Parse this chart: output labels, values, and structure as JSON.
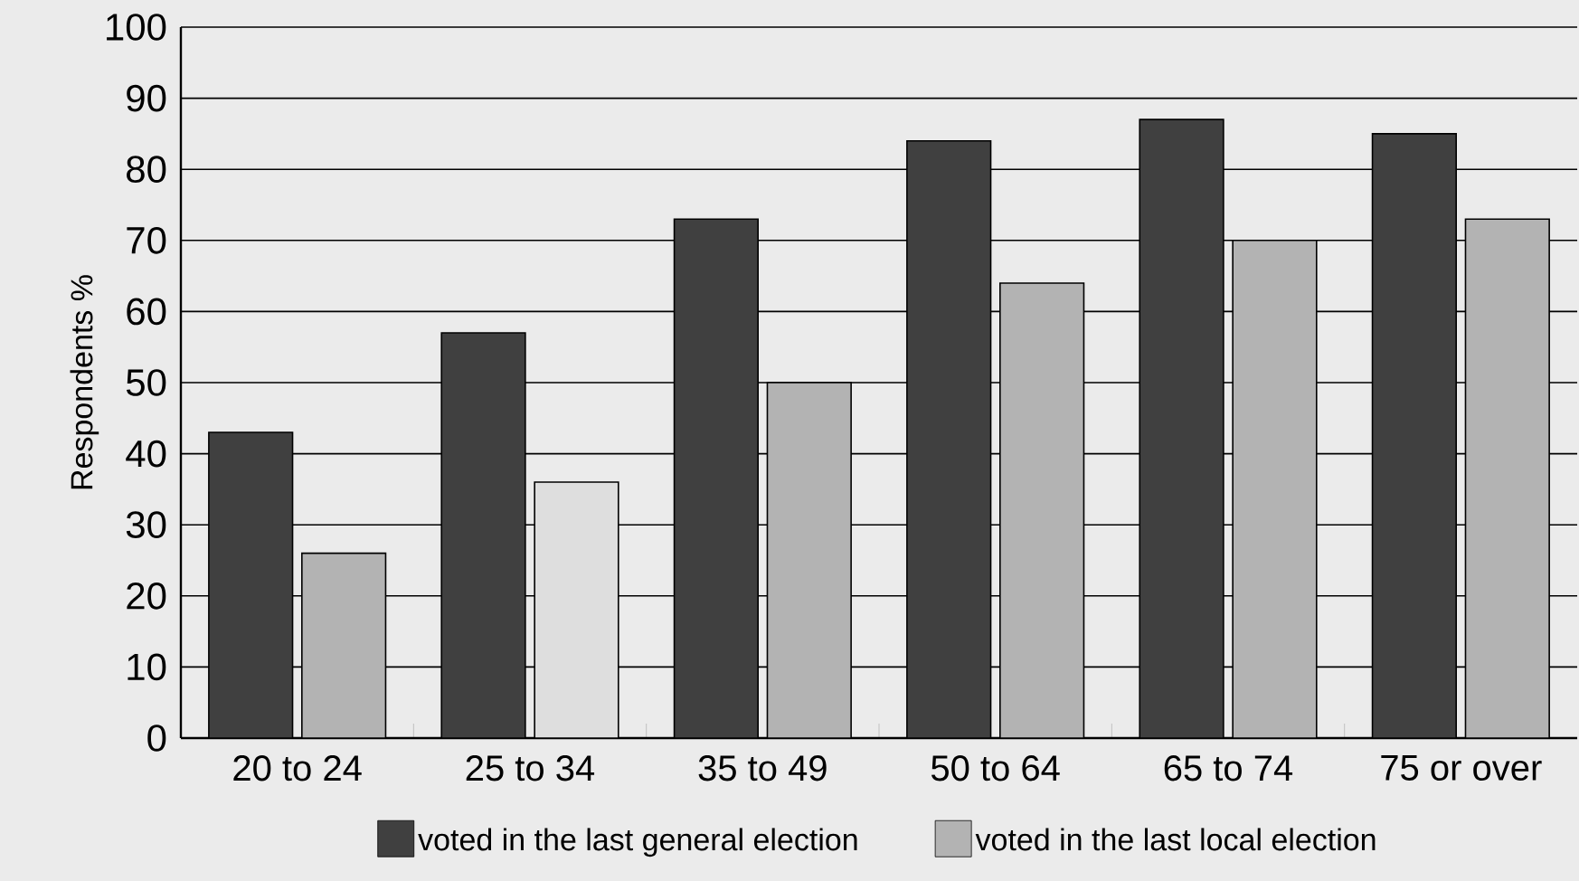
{
  "chart_data": {
    "type": "bar",
    "ylabel": "Respondents %",
    "categories": [
      "20 to 24",
      "25 to 34",
      "35 to 49",
      "50 to 64",
      "65 to 74",
      "75 or over"
    ],
    "series": [
      {
        "name": "voted in the last general election",
        "color": "#404040",
        "values": [
          43,
          57,
          73,
          84,
          87,
          85
        ]
      },
      {
        "name": "voted in the last local election",
        "color": "#b3b3b3",
        "colors": [
          "#b3b3b3",
          "#dedede",
          "#b3b3b3",
          "#b3b3b3",
          "#b3b3b3",
          "#b3b3b3"
        ],
        "values": [
          26,
          36,
          50,
          64,
          70,
          73
        ]
      }
    ],
    "ylim": [
      0,
      100
    ],
    "yticks": [
      0,
      10,
      20,
      30,
      40,
      50,
      60,
      70,
      80,
      90,
      100
    ],
    "grid": "y",
    "legend": "bottom"
  }
}
